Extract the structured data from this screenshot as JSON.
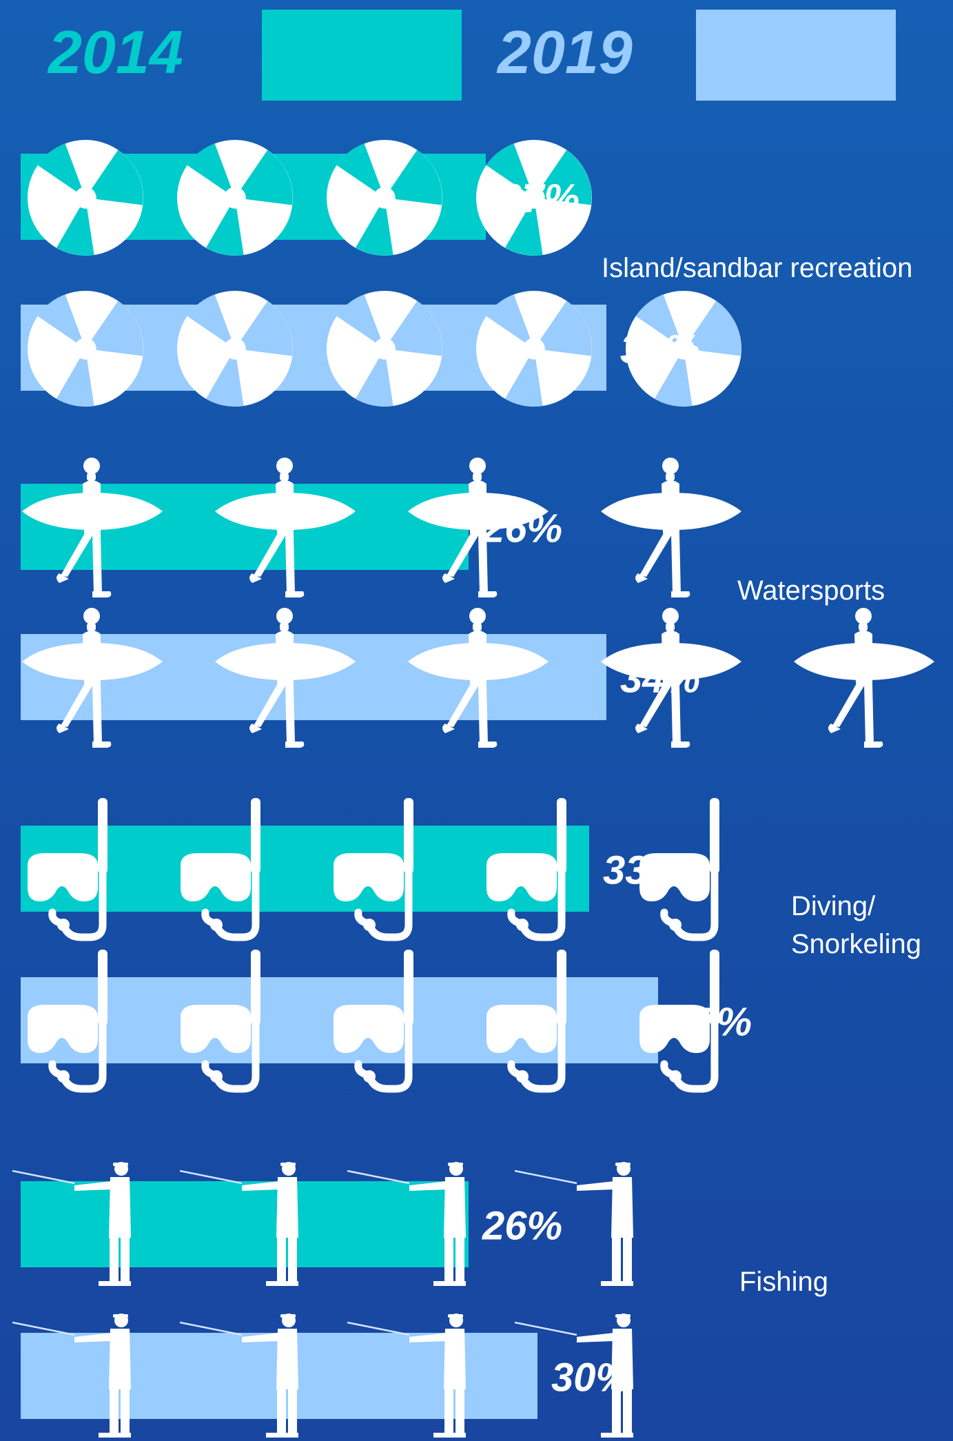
{
  "legend": [
    {
      "year": "2014",
      "color": "#00cccc"
    },
    {
      "year": "2019",
      "color": "#99ccff"
    }
  ],
  "background_color": "#1558ad",
  "chart_data": {
    "type": "bar",
    "orientation": "horizontal",
    "unit": "%",
    "legend_position": "top",
    "grid": false,
    "categories": [
      {
        "label": "Island/sandbar recreation",
        "icon": "beach-ball-icon"
      },
      {
        "label": "Watersports",
        "icon": "surfer-icon"
      },
      {
        "label": "Diving/ Snorkeling",
        "icon": "snorkel-mask-icon"
      },
      {
        "label": "Fishing",
        "icon": "fisherman-icon"
      }
    ],
    "series": [
      {
        "name": "2014",
        "color": "#00cccc",
        "values": [
          27,
          26,
          33,
          26
        ],
        "value_labels": [
          "27%",
          "26%",
          "33%",
          "26%"
        ]
      },
      {
        "name": "2019",
        "color": "#99ccff",
        "values": [
          34,
          34,
          37,
          30
        ],
        "value_labels": [
          "34%",
          "34%",
          "37%",
          "30%"
        ]
      }
    ]
  }
}
